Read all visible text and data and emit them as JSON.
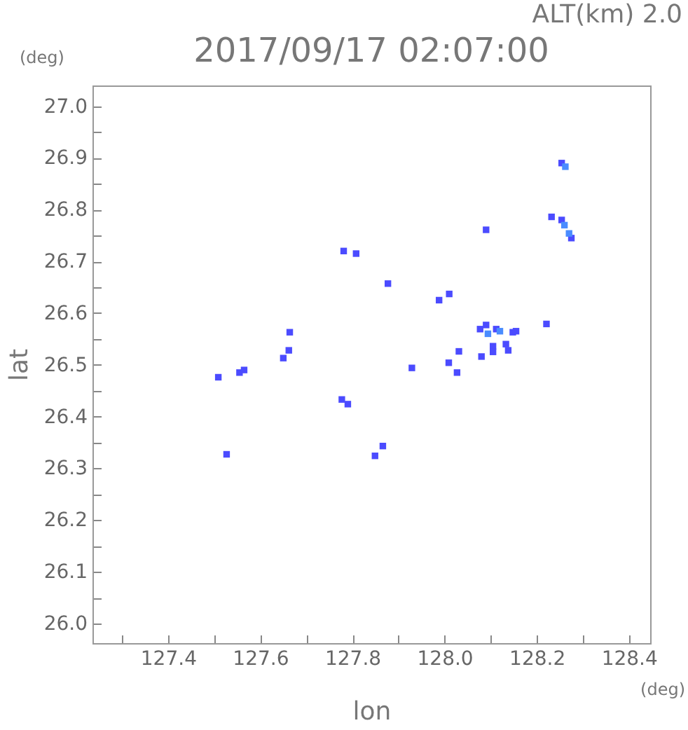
{
  "chart_data": {
    "type": "scatter",
    "title": "2017/09/17 02:07:00",
    "xlabel": "lon",
    "ylabel": "lat",
    "annotations": [
      "ALT(km) 2.0",
      "(deg)",
      "(deg)"
    ],
    "xlim": [
      127.236,
      128.446
    ],
    "ylim": [
      25.962,
      27.04
    ],
    "xticks": [
      {
        "value": 127.3,
        "label": null
      },
      127.4,
      {
        "value": 127.5,
        "label": null
      },
      127.6,
      {
        "value": 127.7,
        "label": null
      },
      127.8,
      {
        "value": 127.9,
        "label": null
      },
      {
        "value": 128.0,
        "label": "128.0"
      },
      {
        "value": 128.1,
        "label": null
      },
      128.2,
      {
        "value": 128.3,
        "label": null
      },
      128.4
    ],
    "yticks": [
      {
        "value": 26.0,
        "label": "26.0"
      },
      {
        "value": 26.05,
        "label": null
      },
      26.1,
      {
        "value": 26.15,
        "label": null
      },
      26.2,
      {
        "value": 26.25,
        "label": null
      },
      26.3,
      {
        "value": 26.35,
        "label": null
      },
      26.4,
      {
        "value": 26.45,
        "label": null
      },
      26.5,
      {
        "value": 26.55,
        "label": null
      },
      26.6,
      {
        "value": 26.65,
        "label": null
      },
      26.7,
      {
        "value": 26.75,
        "label": null
      },
      26.8,
      {
        "value": 26.85,
        "label": null
      },
      26.9,
      {
        "value": 26.95,
        "label": null
      },
      {
        "value": 27.0,
        "label": "27.0"
      }
    ],
    "grid": false,
    "marker": "square",
    "series": [
      {
        "color": "#4b4bff",
        "x": [
          127.781,
          127.808,
          127.877,
          127.664,
          127.662,
          127.65,
          127.509,
          127.555,
          127.565,
          127.777,
          127.79,
          127.527,
          127.866,
          127.849,
          128.254,
          128.232,
          128.254,
          128.275,
          128.09,
          128.01,
          127.988,
          128.221,
          128.077,
          128.09,
          128.112,
          128.148,
          128.155,
          128.133,
          128.138,
          128.08,
          128.031,
          128.009,
          128.027,
          128.105,
          128.105,
          127.929
        ],
        "values": [
          26.72,
          26.715,
          26.657,
          26.563,
          26.528,
          26.513,
          26.476,
          26.485,
          26.49,
          26.433,
          26.424,
          26.327,
          26.343,
          26.324,
          26.89,
          26.786,
          26.78,
          26.745,
          26.761,
          26.637,
          26.625,
          26.579,
          26.569,
          26.577,
          26.569,
          26.563,
          26.565,
          26.54,
          26.528,
          26.516,
          26.526,
          26.504,
          26.485,
          26.536,
          26.525,
          26.494
        ]
      },
      {
        "color": "#4a8cff",
        "x": [
          128.262,
          128.26,
          128.27,
          128.12,
          128.094
        ],
        "values": [
          26.883,
          26.77,
          26.754,
          26.565,
          26.56
        ]
      }
    ]
  }
}
